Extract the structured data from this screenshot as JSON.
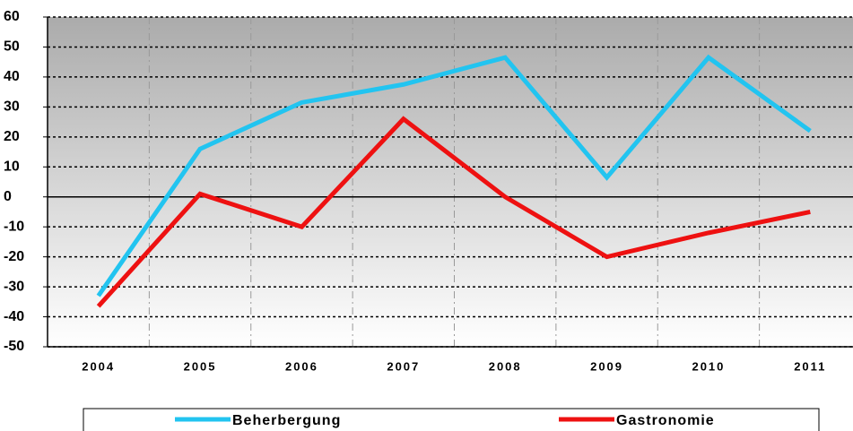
{
  "chart_data": {
    "type": "line",
    "categories": [
      "2004",
      "2005",
      "2006",
      "2007",
      "2008",
      "2009",
      "2010",
      "2011"
    ],
    "series": [
      {
        "name": "Beherbergung",
        "color": "#22c4f0",
        "values": [
          -33,
          16,
          31.5,
          37.5,
          46.5,
          6.5,
          46.5,
          22
        ]
      },
      {
        "name": "Gastronomie",
        "color": "#ee1111",
        "values": [
          -36.5,
          1,
          -10,
          26,
          0,
          -20,
          -12,
          -5
        ]
      }
    ],
    "ylim": [
      -50,
      60
    ],
    "yticks": [
      -50,
      -40,
      -30,
      -20,
      -10,
      0,
      10,
      20,
      30,
      40,
      50,
      60
    ],
    "grid": true,
    "legend": "bottom"
  }
}
